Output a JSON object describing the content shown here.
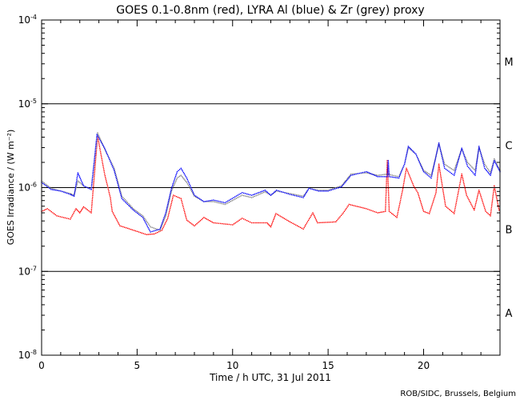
{
  "chart_data": {
    "type": "scatter",
    "title": "GOES 0.1-0.8nm (red), LYRA Al (blue) & Zr (grey) proxy",
    "xlabel": "Time / h UTC, 31 Jul 2011",
    "ylabel": "GOES Irradiance / (W m⁻²)",
    "xlim": [
      0,
      24
    ],
    "ylim": [
      1e-08,
      0.0001
    ],
    "yscale": "log",
    "xticks": [
      0,
      5,
      10,
      15,
      20
    ],
    "xtick_labels": [
      "0",
      "5",
      "10",
      "15",
      "20"
    ],
    "yticks": [
      0.0001,
      1e-05,
      1e-06,
      1e-07,
      1e-08
    ],
    "ytick_labels": [
      {
        "base": "10",
        "exp": "-4"
      },
      {
        "base": "10",
        "exp": "-5"
      },
      {
        "base": "10",
        "exp": "-6"
      },
      {
        "base": "10",
        "exp": "-7"
      },
      {
        "base": "10",
        "exp": "-8"
      }
    ],
    "reference_lines": [
      1e-05,
      1e-06,
      1e-07
    ],
    "flare_classes": [
      {
        "label": "M",
        "level": 3.2e-05
      },
      {
        "label": "C",
        "level": 3.2e-06
      },
      {
        "label": "B",
        "level": 3.2e-07
      },
      {
        "label": "A",
        "level": 3.2e-08
      }
    ],
    "footer": "ROB/SIDC, Brussels, Belgium",
    "colors": {
      "red": "#ff0000",
      "blue": "#0000ff",
      "grey": "#808080",
      "axis": "#000000"
    },
    "series": [
      {
        "name": "GOES 0.1-0.8nm",
        "color": "#ff0000",
        "points": [
          [
            0,
            5.2e-07
          ],
          [
            0.3,
            5.6e-07
          ],
          [
            0.8,
            4.6e-07
          ],
          [
            1.5,
            4.2e-07
          ],
          [
            1.8,
            5.6e-07
          ],
          [
            2.0,
            5e-07
          ],
          [
            2.2,
            5.9e-07
          ],
          [
            2.6,
            5e-07
          ],
          [
            2.93,
            4.1e-06
          ],
          [
            3.3,
            1.45e-06
          ],
          [
            3.6,
            7.6e-07
          ],
          [
            3.7,
            5.2e-07
          ],
          [
            4.1,
            3.5e-07
          ],
          [
            5.0,
            3e-07
          ],
          [
            5.5,
            2.75e-07
          ],
          [
            5.9,
            2.8e-07
          ],
          [
            6.3,
            3.1e-07
          ],
          [
            6.6,
            4.3e-07
          ],
          [
            6.9,
            8.1e-07
          ],
          [
            7.3,
            7.4e-07
          ],
          [
            7.6,
            4.1e-07
          ],
          [
            8.0,
            3.5e-07
          ],
          [
            8.5,
            4.4e-07
          ],
          [
            9.0,
            3.8e-07
          ],
          [
            10.0,
            3.6e-07
          ],
          [
            10.5,
            4.3e-07
          ],
          [
            11.0,
            3.8e-07
          ],
          [
            11.8,
            3.8e-07
          ],
          [
            12.0,
            3.4e-07
          ],
          [
            12.27,
            4.9e-07
          ],
          [
            13.0,
            3.9e-07
          ],
          [
            13.7,
            3.2e-07
          ],
          [
            14.2,
            5e-07
          ],
          [
            14.45,
            3.8e-07
          ],
          [
            15.4,
            3.9e-07
          ],
          [
            15.8,
            5e-07
          ],
          [
            16.1,
            6.3e-07
          ],
          [
            17.0,
            5.6e-07
          ],
          [
            17.6,
            5e-07
          ],
          [
            18.0,
            5.2e-07
          ],
          [
            18.1,
            2.1e-06
          ],
          [
            18.2,
            5.2e-07
          ],
          [
            18.6,
            4.4e-07
          ],
          [
            18.9,
            9.3e-07
          ],
          [
            19.1,
            1.7e-06
          ],
          [
            19.5,
            1.02e-06
          ],
          [
            19.7,
            8.7e-07
          ],
          [
            20.0,
            5.2e-07
          ],
          [
            20.3,
            4.9e-07
          ],
          [
            20.65,
            8.7e-07
          ],
          [
            20.8,
            1.9e-06
          ],
          [
            21.15,
            6e-07
          ],
          [
            21.6,
            4.9e-07
          ],
          [
            22.0,
            1.45e-06
          ],
          [
            22.25,
            8.1e-07
          ],
          [
            22.65,
            5.4e-07
          ],
          [
            22.9,
            9.3e-07
          ],
          [
            23.25,
            5.2e-07
          ],
          [
            23.5,
            4.6e-07
          ],
          [
            23.7,
            1.05e-06
          ],
          [
            23.95,
            5.4e-07
          ]
        ]
      },
      {
        "name": "LYRA Zr proxy",
        "color": "#808080",
        "points": [
          [
            0,
            1.2e-06
          ],
          [
            0.5,
            9.8e-07
          ],
          [
            1.0,
            9.1e-07
          ],
          [
            1.5,
            8.5e-07
          ],
          [
            1.7,
            8.1e-07
          ],
          [
            1.9,
            1.2e-06
          ],
          [
            2.2,
            1.05e-06
          ],
          [
            2.6,
            9.5e-07
          ],
          [
            2.93,
            4.5e-06
          ],
          [
            3.3,
            2.9e-06
          ],
          [
            3.8,
            1.7e-06
          ],
          [
            4.2,
            7.9e-07
          ],
          [
            4.8,
            5.6e-07
          ],
          [
            5.3,
            4.6e-07
          ],
          [
            5.7,
            3.4e-07
          ],
          [
            6.2,
            3.1e-07
          ],
          [
            6.5,
            4.6e-07
          ],
          [
            6.8,
            9.1e-07
          ],
          [
            7.1,
            1.3e-06
          ],
          [
            7.3,
            1.4e-06
          ],
          [
            7.6,
            1.15e-06
          ],
          [
            8.0,
            7.9e-07
          ],
          [
            8.5,
            6.8e-07
          ],
          [
            9.0,
            6.8e-07
          ],
          [
            9.6,
            6.3e-07
          ],
          [
            10.5,
            8.1e-07
          ],
          [
            11.0,
            7.6e-07
          ],
          [
            11.7,
            8.9e-07
          ],
          [
            12.0,
            8.1e-07
          ],
          [
            12.3,
            9.1e-07
          ],
          [
            13.0,
            8.5e-07
          ],
          [
            13.7,
            7.9e-07
          ],
          [
            14.0,
            9.8e-07
          ],
          [
            14.5,
            9.3e-07
          ],
          [
            15.0,
            9.3e-07
          ],
          [
            15.7,
            1.05e-06
          ],
          [
            16.2,
            1.45e-06
          ],
          [
            17.0,
            1.5e-06
          ],
          [
            17.6,
            1.4e-06
          ],
          [
            18.1,
            1.45e-06
          ],
          [
            18.7,
            1.35e-06
          ],
          [
            19.0,
            1.9e-06
          ],
          [
            19.2,
            3e-06
          ],
          [
            19.6,
            2.5e-06
          ],
          [
            20.0,
            1.6e-06
          ],
          [
            20.4,
            1.4e-06
          ],
          [
            20.8,
            3.3e-06
          ],
          [
            21.1,
            1.9e-06
          ],
          [
            21.6,
            1.6e-06
          ],
          [
            22.0,
            2.9e-06
          ],
          [
            22.3,
            2e-06
          ],
          [
            22.7,
            1.6e-06
          ],
          [
            22.9,
            3e-06
          ],
          [
            23.2,
            1.9e-06
          ],
          [
            23.5,
            1.5e-06
          ],
          [
            23.7,
            2.2e-06
          ],
          [
            24.0,
            1.6e-06
          ]
        ]
      },
      {
        "name": "LYRA Al proxy",
        "color": "#0000ff",
        "points": [
          [
            0,
            1.15e-06
          ],
          [
            0.5,
            9.5e-07
          ],
          [
            1.0,
            9.1e-07
          ],
          [
            1.5,
            8.3e-07
          ],
          [
            1.7,
            7.9e-07
          ],
          [
            1.9,
            1.5e-06
          ],
          [
            2.2,
            1.05e-06
          ],
          [
            2.6,
            9.5e-07
          ],
          [
            2.9,
            4.3e-06
          ],
          [
            3.3,
            2.95e-06
          ],
          [
            3.8,
            1.6e-06
          ],
          [
            4.2,
            7.4e-07
          ],
          [
            4.8,
            5.4e-07
          ],
          [
            5.3,
            4.4e-07
          ],
          [
            5.7,
            2.95e-07
          ],
          [
            6.2,
            3.2e-07
          ],
          [
            6.5,
            5e-07
          ],
          [
            6.8,
            9.8e-07
          ],
          [
            7.1,
            1.55e-06
          ],
          [
            7.3,
            1.7e-06
          ],
          [
            7.6,
            1.3e-06
          ],
          [
            8.0,
            8.1e-07
          ],
          [
            8.5,
            6.8e-07
          ],
          [
            9.0,
            7.1e-07
          ],
          [
            9.6,
            6.6e-07
          ],
          [
            10.5,
            8.7e-07
          ],
          [
            11.0,
            8.1e-07
          ],
          [
            11.7,
            9.3e-07
          ],
          [
            12.0,
            8.1e-07
          ],
          [
            12.3,
            9.3e-07
          ],
          [
            13.0,
            8.3e-07
          ],
          [
            13.7,
            7.6e-07
          ],
          [
            14.0,
            9.8e-07
          ],
          [
            14.5,
            9.1e-07
          ],
          [
            15.0,
            9.1e-07
          ],
          [
            15.7,
            1.02e-06
          ],
          [
            16.2,
            1.4e-06
          ],
          [
            17.0,
            1.55e-06
          ],
          [
            17.6,
            1.35e-06
          ],
          [
            18.1,
            1.35e-06
          ],
          [
            18.15,
            2.1e-06
          ],
          [
            18.2,
            1.35e-06
          ],
          [
            18.7,
            1.3e-06
          ],
          [
            19.0,
            1.9e-06
          ],
          [
            19.2,
            3.1e-06
          ],
          [
            19.6,
            2.5e-06
          ],
          [
            20.0,
            1.55e-06
          ],
          [
            20.4,
            1.3e-06
          ],
          [
            20.8,
            3.4e-06
          ],
          [
            21.1,
            1.7e-06
          ],
          [
            21.6,
            1.4e-06
          ],
          [
            22.0,
            2.95e-06
          ],
          [
            22.3,
            1.8e-06
          ],
          [
            22.7,
            1.4e-06
          ],
          [
            22.9,
            3.1e-06
          ],
          [
            23.2,
            1.7e-06
          ],
          [
            23.5,
            1.4e-06
          ],
          [
            23.7,
            2.1e-06
          ],
          [
            24.0,
            1.55e-06
          ]
        ]
      }
    ]
  }
}
